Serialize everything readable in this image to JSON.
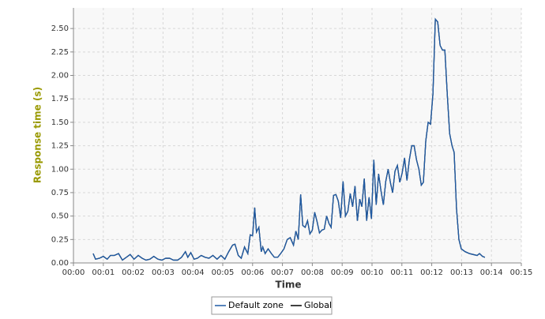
{
  "chart_data": {
    "type": "line",
    "x_label": "Time",
    "y_label": "Response time (s)",
    "xlim": [
      0,
      15
    ],
    "ylim": [
      0,
      2.72
    ],
    "grid": true,
    "xticks": [
      {
        "value": 0,
        "label": "00:00"
      },
      {
        "value": 1,
        "label": "00:01"
      },
      {
        "value": 2,
        "label": "00:02"
      },
      {
        "value": 3,
        "label": "00:03"
      },
      {
        "value": 4,
        "label": "00:04"
      },
      {
        "value": 5,
        "label": "00:05"
      },
      {
        "value": 6,
        "label": "00:06"
      },
      {
        "value": 7,
        "label": "00:07"
      },
      {
        "value": 8,
        "label": "00:08"
      },
      {
        "value": 9,
        "label": "00:09"
      },
      {
        "value": 10,
        "label": "00:10"
      },
      {
        "value": 11,
        "label": "00:11"
      },
      {
        "value": 12,
        "label": "00:12"
      },
      {
        "value": 13,
        "label": "00:13"
      },
      {
        "value": 14,
        "label": "00:14"
      },
      {
        "value": 15,
        "label": "00:15"
      }
    ],
    "yticks": [
      {
        "value": 0,
        "label": "0.00"
      },
      {
        "value": 0.25,
        "label": "0.25"
      },
      {
        "value": 0.5,
        "label": "0.50"
      },
      {
        "value": 0.75,
        "label": "0.75"
      },
      {
        "value": 1,
        "label": "1.00"
      },
      {
        "value": 1.25,
        "label": "1.25"
      },
      {
        "value": 1.5,
        "label": "1.50"
      },
      {
        "value": 1.75,
        "label": "1.75"
      },
      {
        "value": 2,
        "label": "2.00"
      },
      {
        "value": 2.25,
        "label": "2.25"
      },
      {
        "value": 2.5,
        "label": "2.50"
      }
    ],
    "x": [
      0.66,
      0.74,
      0.87,
      1.0,
      1.13,
      1.24,
      1.37,
      1.51,
      1.64,
      1.77,
      1.9,
      2.03,
      2.17,
      2.3,
      2.43,
      2.56,
      2.69,
      2.83,
      2.96,
      3.09,
      3.22,
      3.35,
      3.49,
      3.62,
      3.75,
      3.83,
      3.93,
      4.04,
      4.15,
      4.28,
      4.41,
      4.54,
      4.67,
      4.81,
      4.94,
      5.07,
      5.2,
      5.33,
      5.41,
      5.52,
      5.62,
      5.73,
      5.84,
      5.92,
      6.0,
      6.07,
      6.13,
      6.21,
      6.29,
      6.34,
      6.42,
      6.52,
      6.63,
      6.73,
      6.84,
      6.94,
      7.05,
      7.16,
      7.26,
      7.37,
      7.45,
      7.53,
      7.61,
      7.68,
      7.76,
      7.84,
      7.92,
      8.0,
      8.08,
      8.16,
      8.24,
      8.32,
      8.4,
      8.48,
      8.56,
      8.63,
      8.71,
      8.79,
      8.87,
      8.95,
      9.03,
      9.11,
      9.19,
      9.27,
      9.35,
      9.43,
      9.51,
      9.59,
      9.66,
      9.74,
      9.82,
      9.9,
      9.98,
      10.06,
      10.14,
      10.22,
      10.3,
      10.38,
      10.46,
      10.54,
      10.62,
      10.69,
      10.77,
      10.85,
      10.93,
      11.01,
      11.09,
      11.17,
      11.25,
      11.33,
      11.41,
      11.49,
      11.57,
      11.65,
      11.72,
      11.8,
      11.88,
      11.96,
      12.04,
      12.12,
      12.2,
      12.28,
      12.36,
      12.44,
      12.52,
      12.6,
      12.68,
      12.75,
      12.83,
      12.91,
      12.99,
      13.12,
      13.26,
      13.39,
      13.52,
      13.6,
      13.7,
      13.78
    ],
    "series": [
      {
        "name": "Global",
        "color": "#000000",
        "values": [
          0.1,
          0.04,
          0.05,
          0.07,
          0.04,
          0.08,
          0.08,
          0.1,
          0.03,
          0.06,
          0.09,
          0.04,
          0.08,
          0.05,
          0.03,
          0.04,
          0.07,
          0.04,
          0.03,
          0.05,
          0.05,
          0.03,
          0.03,
          0.06,
          0.12,
          0.06,
          0.11,
          0.04,
          0.05,
          0.08,
          0.06,
          0.05,
          0.08,
          0.04,
          0.08,
          0.04,
          0.12,
          0.19,
          0.2,
          0.08,
          0.05,
          0.17,
          0.1,
          0.3,
          0.29,
          0.59,
          0.33,
          0.38,
          0.12,
          0.17,
          0.1,
          0.15,
          0.1,
          0.06,
          0.06,
          0.1,
          0.15,
          0.25,
          0.27,
          0.19,
          0.34,
          0.25,
          0.73,
          0.4,
          0.38,
          0.45,
          0.31,
          0.35,
          0.54,
          0.44,
          0.32,
          0.35,
          0.36,
          0.5,
          0.42,
          0.38,
          0.72,
          0.73,
          0.66,
          0.48,
          0.87,
          0.5,
          0.55,
          0.74,
          0.6,
          0.82,
          0.45,
          0.68,
          0.6,
          0.9,
          0.45,
          0.7,
          0.47,
          1.1,
          0.62,
          0.95,
          0.77,
          0.62,
          0.87,
          1.0,
          0.85,
          0.75,
          0.98,
          1.04,
          0.86,
          0.96,
          1.12,
          0.88,
          1.1,
          1.25,
          1.25,
          1.1,
          1.0,
          0.83,
          0.86,
          1.3,
          1.5,
          1.48,
          1.8,
          2.6,
          2.57,
          2.32,
          2.27,
          2.27,
          1.8,
          1.38,
          1.25,
          1.18,
          0.58,
          0.25,
          0.15,
          0.12,
          0.1,
          0.09,
          0.08,
          0.1,
          0.07,
          0.06
        ]
      },
      {
        "name": "Default zone",
        "color": "#1f5ba5",
        "values": [
          0.1,
          0.04,
          0.05,
          0.07,
          0.04,
          0.08,
          0.08,
          0.1,
          0.03,
          0.06,
          0.09,
          0.04,
          0.08,
          0.05,
          0.03,
          0.04,
          0.07,
          0.04,
          0.03,
          0.05,
          0.05,
          0.03,
          0.03,
          0.06,
          0.12,
          0.06,
          0.11,
          0.04,
          0.05,
          0.08,
          0.06,
          0.05,
          0.08,
          0.04,
          0.08,
          0.04,
          0.12,
          0.19,
          0.2,
          0.08,
          0.05,
          0.17,
          0.1,
          0.3,
          0.29,
          0.59,
          0.33,
          0.38,
          0.12,
          0.17,
          0.1,
          0.15,
          0.1,
          0.06,
          0.06,
          0.1,
          0.15,
          0.25,
          0.27,
          0.19,
          0.34,
          0.25,
          0.73,
          0.4,
          0.38,
          0.45,
          0.31,
          0.35,
          0.54,
          0.44,
          0.32,
          0.35,
          0.36,
          0.5,
          0.42,
          0.38,
          0.72,
          0.73,
          0.66,
          0.48,
          0.87,
          0.5,
          0.55,
          0.74,
          0.6,
          0.82,
          0.45,
          0.68,
          0.6,
          0.9,
          0.45,
          0.7,
          0.47,
          1.1,
          0.62,
          0.95,
          0.77,
          0.62,
          0.87,
          1.0,
          0.85,
          0.75,
          0.98,
          1.04,
          0.86,
          0.96,
          1.12,
          0.88,
          1.1,
          1.25,
          1.25,
          1.1,
          1.0,
          0.83,
          0.86,
          1.3,
          1.5,
          1.48,
          1.8,
          2.6,
          2.57,
          2.32,
          2.27,
          2.27,
          1.8,
          1.38,
          1.25,
          1.18,
          0.58,
          0.25,
          0.15,
          0.12,
          0.1,
          0.09,
          0.08,
          0.1,
          0.07,
          0.06
        ]
      }
    ]
  }
}
